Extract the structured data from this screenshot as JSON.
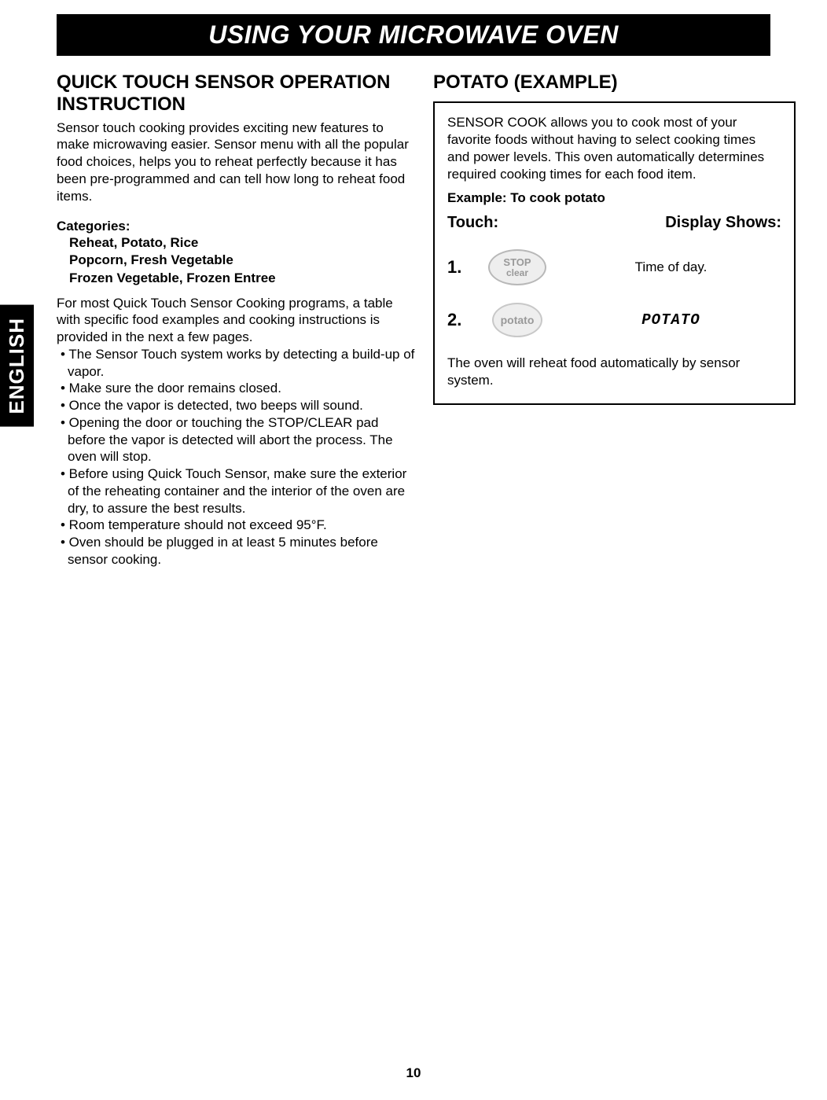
{
  "banner": "USING YOUR MICROWAVE OVEN",
  "langTab": "ENGLISH",
  "left": {
    "heading": "QUICK TOUCH SENSOR OPERATION INSTRUCTION",
    "intro": "Sensor touch cooking provides exciting new features to make microwaving easier. Sensor menu with all the popular food choices, helps you to reheat perfectly because it has been pre-programmed and can tell how long to reheat food items.",
    "categoriesLabel": "Categories:",
    "catLine1": "Reheat, Potato, Rice",
    "catLine2": "Popcorn, Fresh Vegetable",
    "catLine3": "Frozen Vegetable, Frozen Entree",
    "bulletIntro": "For most Quick Touch Sensor Cooking programs, a table with specific food examples and cooking instructions is provided in the next a few pages.",
    "b1": "• The Sensor Touch system works by detecting a build-up of vapor.",
    "b2": "• Make sure the door remains closed.",
    "b3": "• Once the vapor is detected, two beeps will sound.",
    "b4": "• Opening the door or touching the STOP/CLEAR pad before the vapor is detected will abort the process. The oven will stop.",
    "b5": "• Before using Quick Touch Sensor, make sure the exterior of the reheating container and the interior of the oven are dry, to assure the best results.",
    "b6": "• Room temperature should not exceed 95°F.",
    "b7": "• Oven should be plugged in at least 5 minutes before sensor cooking."
  },
  "right": {
    "heading": "POTATO (EXAMPLE)",
    "boxIntro": "SENSOR COOK allows you to cook most of your favorite foods without having to select cooking times and power levels. This oven automatically determines required cooking times for each food item.",
    "exampleLabel": "Example: To cook potato",
    "touchLabel": "Touch:",
    "displayLabel": "Display Shows:",
    "step1Num": "1.",
    "step1BtnLine1": "STOP",
    "step1BtnLine2": "clear",
    "step1Display": "Time of day.",
    "step2Num": "2.",
    "step2Btn": "potato",
    "step2Display": "POTATO",
    "boxFooter": "The oven will reheat food automatically by sensor system."
  },
  "pageNumber": "10",
  "colors": {
    "bannerBg": "#000000",
    "bannerText": "#ffffff",
    "bodyText": "#000000",
    "btnBorder": "#b8b8b8",
    "btnBg": "#eeeeee",
    "btnText": "#999999"
  }
}
